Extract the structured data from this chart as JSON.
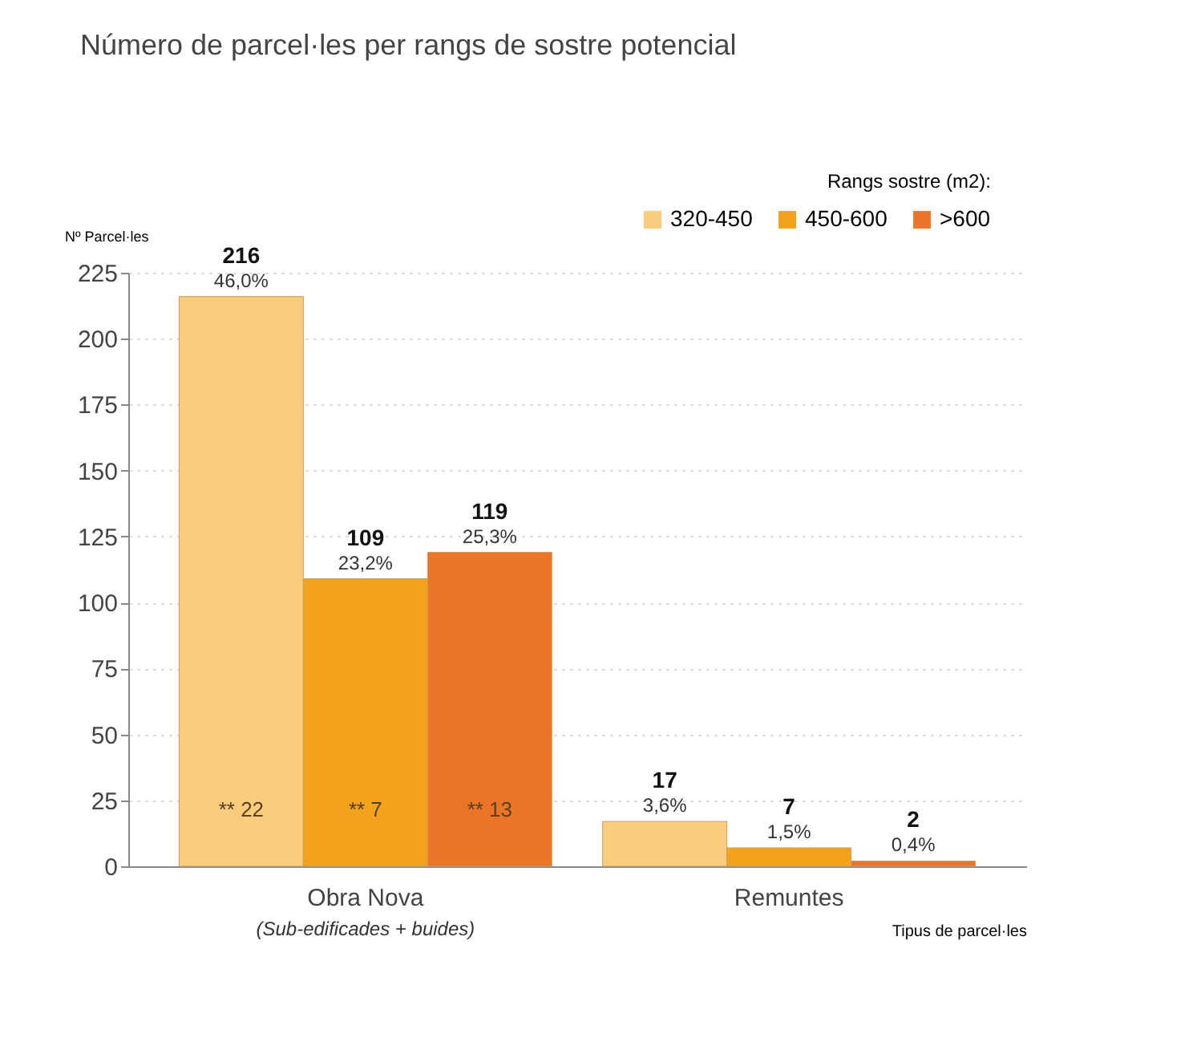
{
  "chart_data": {
    "type": "bar",
    "title": "Número de parcel·les per rangs de sostre potencial",
    "xlabel": "Tipus de parcel·les",
    "ylabel": "Nº Parcel·les",
    "legend_title": "Rangs sostre (m2):",
    "categories": [
      "Obra Nova",
      "Remuntes"
    ],
    "series": [
      {
        "name": "320-450",
        "color": "#fbcb7e",
        "values": [
          216,
          17
        ],
        "value_labels": [
          "216\n46,0%",
          "17\n3,6%"
        ]
      },
      {
        "name": "450-600",
        "color": "#f2a31b",
        "values": [
          109,
          7
        ],
        "value_labels": [
          "109\n23,2%",
          "7\n1,5%"
        ]
      },
      {
        "name": ">600",
        "color": "#ec7426",
        "values": [
          119,
          2
        ],
        "value_labels": [
          "119\n25,3%",
          "2\n0,4%"
        ]
      }
    ],
    "annotations": [
      "** 22",
      "** 7",
      "** 13",
      "(Sub-edificades + buides)"
    ],
    "ylim": [
      0,
      225
    ],
    "yticks": [
      0,
      25,
      50,
      75,
      100,
      125,
      150,
      175,
      200,
      225
    ],
    "grid": "y",
    "legend": "top right"
  }
}
